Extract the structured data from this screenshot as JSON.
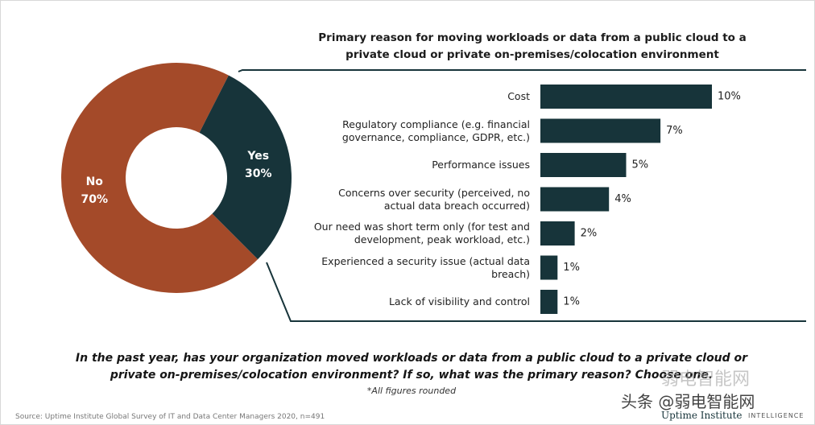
{
  "chart_data": [
    {
      "type": "pie",
      "donut": true,
      "categories": [
        "No",
        "Yes"
      ],
      "values": [
        70,
        30
      ],
      "value_labels": [
        "70%",
        "30%"
      ],
      "colors": [
        "#a44a29",
        "#17343a"
      ]
    },
    {
      "type": "bar",
      "orientation": "horizontal",
      "title": "Primary reason for moving workloads or data from a public cloud to a private cloud or private on-premises/colocation environment",
      "categories": [
        "Cost",
        "Regulatory compliance (e.g. financial governance, compliance, GDPR, etc.)",
        "Performance issues",
        "Concerns over security (perceived, no actual data breach occurred)",
        "Our need was short term only (for test and development, peak workload, etc.)",
        "Experienced a security issue (actual data breach)",
        "Lack of visibility and control"
      ],
      "values": [
        10,
        7,
        5,
        4,
        2,
        1,
        1
      ],
      "value_labels": [
        "10%",
        "7%",
        "5%",
        "4%",
        "2%",
        "1%",
        "1%"
      ],
      "color": "#17343a"
    }
  ],
  "question": "In the past year, has your organization moved workloads or data from a public cloud to a private cloud or private on-premises/colocation environment? If so, what was the primary reason? Choose one.",
  "note": "*All figures rounded",
  "source": "Source: Uptime Institute Global Survey of IT and Data Center Managers 2020, n=491",
  "logo": "Uptime Institute",
  "logo_sub": "INTELLIGENCE",
  "watermark": [
    "弱电智能网",
    "头条 @弱电智能网"
  ]
}
